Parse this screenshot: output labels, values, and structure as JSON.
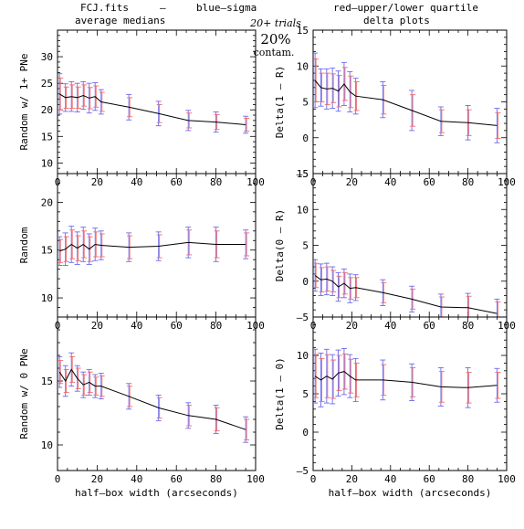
{
  "header": {
    "file": "FCJ.fits",
    "dash": "–",
    "blue_label": "blue–sigma",
    "red_label": "red–upper/lower quartile",
    "trials": "20+ trials",
    "contam_pct": "20%",
    "contam": "contam.",
    "left_title": "average medians",
    "right_title": "delta plots"
  },
  "colors": {
    "line": "#000000",
    "sigma": "#6a6af0",
    "quartile": "#f06a6a",
    "axis": "#000000"
  },
  "chart_data": [
    {
      "type": "line",
      "panel": "top-left",
      "ylabel": "Random w/ 1+ PNe",
      "xlabel": "",
      "xlim": [
        0,
        100
      ],
      "ylim": [
        8,
        35
      ],
      "x_ticks": [
        "0",
        "20",
        "40",
        "60",
        "80",
        "100"
      ],
      "y_ticks": [
        "10",
        "15",
        "20",
        "25",
        "30"
      ],
      "x": [
        1,
        4,
        7,
        10,
        13,
        16,
        19,
        22,
        36,
        51,
        66,
        80,
        95
      ],
      "y": [
        23,
        22.3,
        22.5,
        22.3,
        22.7,
        22.2,
        22.5,
        21.5,
        20.5,
        19.3,
        18,
        17.7,
        17.2
      ],
      "sigma": [
        3.8,
        2.6,
        2.8,
        2.7,
        2.6,
        2.8,
        2.6,
        2.3,
        2.4,
        2.3,
        1.9,
        1.9,
        1.6
      ],
      "quartile": [
        3.0,
        2.0,
        2.2,
        2.0,
        2.0,
        2.0,
        2.0,
        1.8,
        1.8,
        1.7,
        1.4,
        1.4,
        1.2
      ]
    },
    {
      "type": "line",
      "panel": "top-right",
      "ylabel": "Delta(1 – R)",
      "xlabel": "",
      "xlim": [
        0,
        100
      ],
      "ylim": [
        -5,
        15
      ],
      "x_ticks": [
        "0",
        "20",
        "40",
        "60",
        "80",
        "100"
      ],
      "y_ticks": [
        "–5",
        "0",
        "5",
        "10",
        "15"
      ],
      "x": [
        1,
        4,
        7,
        10,
        13,
        16,
        19,
        22,
        36,
        51,
        66,
        80,
        95
      ],
      "y": [
        8,
        7,
        6.8,
        6.9,
        6.5,
        7.5,
        6.4,
        5.8,
        5.3,
        3.8,
        2.3,
        2.1,
        1.7
      ],
      "sigma": [
        3.8,
        2.6,
        2.8,
        2.8,
        2.8,
        3.0,
        2.8,
        2.5,
        2.5,
        2.8,
        2.0,
        2.4,
        2.4
      ],
      "quartile": [
        3.0,
        2.0,
        2.2,
        2.0,
        2.2,
        2.3,
        2.2,
        2.0,
        2.0,
        2.2,
        1.6,
        1.8,
        1.8
      ]
    },
    {
      "type": "line",
      "panel": "middle-left",
      "ylabel": "Random",
      "xlabel": "",
      "xlim": [
        0,
        100
      ],
      "ylim": [
        8,
        23
      ],
      "x_ticks": [
        "0",
        "20",
        "40",
        "60",
        "80",
        "100"
      ],
      "y_ticks": [
        "10",
        "15",
        "20"
      ],
      "x": [
        1,
        4,
        7,
        10,
        13,
        16,
        19,
        22,
        36,
        51,
        66,
        80,
        95
      ],
      "y": [
        14.9,
        15.1,
        15.6,
        15.2,
        15.6,
        15.1,
        15.6,
        15.5,
        15.3,
        15.4,
        15.8,
        15.6,
        15.6
      ],
      "sigma": [
        1.5,
        1.7,
        1.9,
        1.7,
        1.8,
        1.6,
        1.7,
        1.5,
        1.5,
        1.5,
        1.6,
        1.8,
        1.5
      ],
      "quartile": [
        1.2,
        1.3,
        1.5,
        1.3,
        1.4,
        1.3,
        1.3,
        1.2,
        1.2,
        1.2,
        1.3,
        1.4,
        1.2
      ]
    },
    {
      "type": "line",
      "panel": "middle-right",
      "ylabel": "Delta(0 – R)",
      "xlabel": "",
      "xlim": [
        0,
        100
      ],
      "ylim": [
        -5,
        15
      ],
      "x_ticks": [
        "0",
        "20",
        "40",
        "60",
        "80",
        "100"
      ],
      "y_ticks": [
        "–5",
        "0",
        "5",
        "10",
        "15"
      ],
      "x": [
        1,
        4,
        7,
        10,
        13,
        16,
        19,
        22,
        36,
        51,
        66,
        80,
        95
      ],
      "y": [
        0.8,
        0.2,
        0.3,
        0.0,
        -0.8,
        -0.3,
        -1.0,
        -0.9,
        -1.6,
        -2.5,
        -3.6,
        -3.7,
        -4.5
      ],
      "sigma": [
        2.2,
        2.2,
        2.2,
        2.0,
        2.0,
        2.0,
        2.0,
        1.8,
        1.8,
        1.8,
        1.8,
        2.0,
        2.0
      ],
      "quartile": [
        1.7,
        1.7,
        1.7,
        1.5,
        1.5,
        1.5,
        1.5,
        1.4,
        1.4,
        1.4,
        1.4,
        1.6,
        1.6
      ]
    },
    {
      "type": "line",
      "panel": "bottom-left",
      "ylabel": "Random w/ 0 PNe",
      "xlabel": "half–box width (arcseconds)",
      "xlim": [
        0,
        100
      ],
      "ylim": [
        8,
        20
      ],
      "x_ticks": [
        "0",
        "20",
        "40",
        "60",
        "80",
        "100"
      ],
      "y_ticks": [
        "10",
        "15"
      ],
      "x": [
        1,
        4,
        7,
        10,
        13,
        16,
        19,
        22,
        36,
        51,
        66,
        80,
        95
      ],
      "y": [
        15.7,
        15.0,
        15.9,
        15.2,
        14.7,
        14.9,
        14.6,
        14.6,
        13.8,
        12.9,
        12.3,
        12.0,
        11.2
      ],
      "sigma": [
        1.2,
        1.2,
        1.3,
        1.0,
        1.0,
        1.0,
        0.9,
        1.0,
        1.0,
        1.0,
        1.0,
        1.1,
        1.0
      ],
      "quartile": [
        0.9,
        0.9,
        1.0,
        0.8,
        0.8,
        0.8,
        0.7,
        0.8,
        0.8,
        0.8,
        0.8,
        0.9,
        0.8
      ]
    },
    {
      "type": "line",
      "panel": "bottom-right",
      "ylabel": "Delta(1 – 0)",
      "xlabel": "half–box width (arcseconds)",
      "xlim": [
        0,
        100
      ],
      "ylim": [
        -5,
        15
      ],
      "x_ticks": [
        "0",
        "20",
        "40",
        "60",
        "80",
        "100"
      ],
      "y_ticks": [
        "–5",
        "0",
        "5",
        "10"
      ],
      "x": [
        1,
        4,
        7,
        10,
        13,
        16,
        19,
        22,
        36,
        51,
        66,
        80,
        95
      ],
      "y": [
        7.3,
        6.8,
        7.3,
        6.9,
        7.7,
        7.9,
        7.3,
        6.8,
        6.8,
        6.5,
        5.9,
        5.8,
        6.1
      ],
      "sigma": [
        3.5,
        3.5,
        3.5,
        3.2,
        3.0,
        3.0,
        2.8,
        2.8,
        2.6,
        2.4,
        2.5,
        2.6,
        2.2
      ],
      "quartile": [
        2.8,
        2.8,
        2.8,
        2.5,
        2.3,
        2.3,
        2.2,
        2.2,
        2.0,
        1.9,
        2.0,
        2.0,
        1.7
      ]
    }
  ]
}
